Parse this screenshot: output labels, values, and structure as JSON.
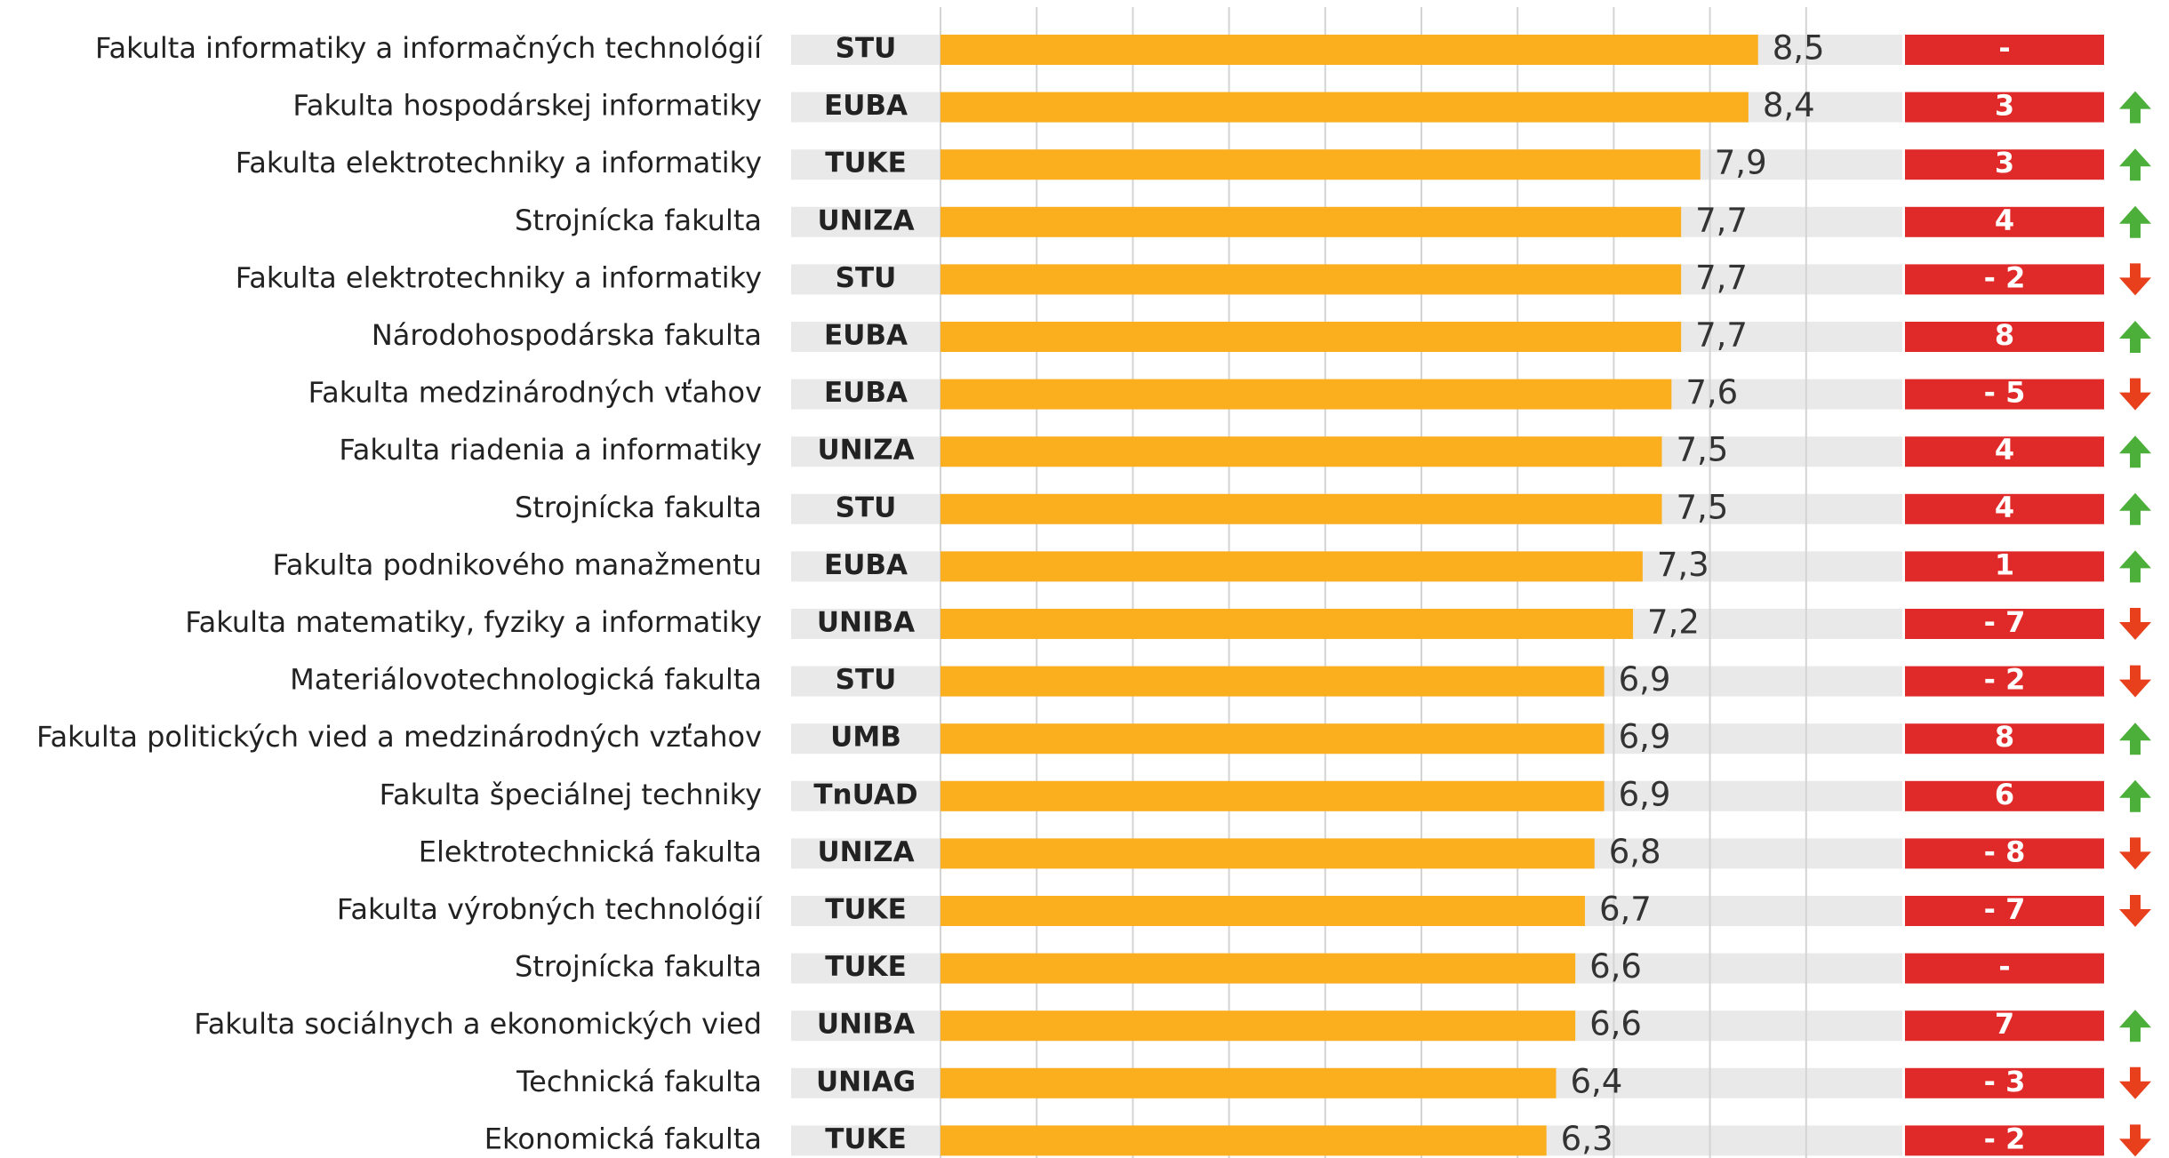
{
  "chart_data": {
    "type": "bar",
    "orientation": "horizontal",
    "categories": [
      "Fakulta informatiky a informačných technológií",
      "Fakulta hospodárskej informatiky",
      "Fakulta elektrotechniky a informatiky",
      "Strojnícka fakulta",
      "Fakulta elektrotechniky a informatiky",
      "Národohospodárska fakulta",
      "Fakulta medzinárodných vťahov",
      "Fakulta riadenia a informatiky",
      "Strojnícka fakulta",
      "Fakulta podnikového manažmentu",
      "Fakulta matematiky, fyziky a informatiky",
      "Materiálovotechnologická fakulta",
      "Fakulta politických vied a medzinárodných vzťahov",
      "Fakulta špeciálnej techniky",
      "Elektrotechnická fakulta",
      "Fakulta výrobných technológií",
      "Strojnícka fakulta",
      "Fakulta sociálnych a ekonomických vied",
      "Technická fakulta",
      "Ekonomická fakulta"
    ],
    "universities": [
      "STU",
      "EUBA",
      "TUKE",
      "UNIZA",
      "STU",
      "EUBA",
      "EUBA",
      "UNIZA",
      "STU",
      "EUBA",
      "UNIBA",
      "STU",
      "UMB",
      "TnUAD",
      "UNIZA",
      "TUKE",
      "TUKE",
      "UNIBA",
      "UNIAG",
      "TUKE"
    ],
    "values": [
      8.5,
      8.4,
      7.9,
      7.7,
      7.7,
      7.7,
      7.6,
      7.5,
      7.5,
      7.3,
      7.2,
      6.9,
      6.9,
      6.9,
      6.8,
      6.7,
      6.6,
      6.6,
      6.4,
      6.3
    ],
    "value_labels": [
      "8,5",
      "8,4",
      "7,9",
      "7,7",
      "7,7",
      "7,7",
      "7,6",
      "7,5",
      "7,5",
      "7,3",
      "7,2",
      "6,9",
      "6,9",
      "6,9",
      "6,8",
      "6,7",
      "6,6",
      "6,6",
      "6,4",
      "6,3"
    ],
    "rank_changes": [
      null,
      3,
      3,
      4,
      -2,
      8,
      -5,
      4,
      4,
      1,
      -7,
      -2,
      8,
      6,
      -8,
      -7,
      null,
      7,
      -3,
      -2
    ],
    "rank_change_labels": [
      "-",
      "3",
      "3",
      "4",
      "- 2",
      "8",
      "- 5",
      "4",
      "4",
      "1",
      "- 7",
      "- 2",
      "8",
      "6",
      "- 8",
      "- 7",
      "-",
      "7",
      "- 3",
      "- 2"
    ],
    "color": "#fbae1e",
    "xlim": [
      0,
      10
    ],
    "xticks": [
      1,
      2,
      3,
      4,
      5,
      6,
      7,
      8,
      9
    ],
    "grid": true
  }
}
